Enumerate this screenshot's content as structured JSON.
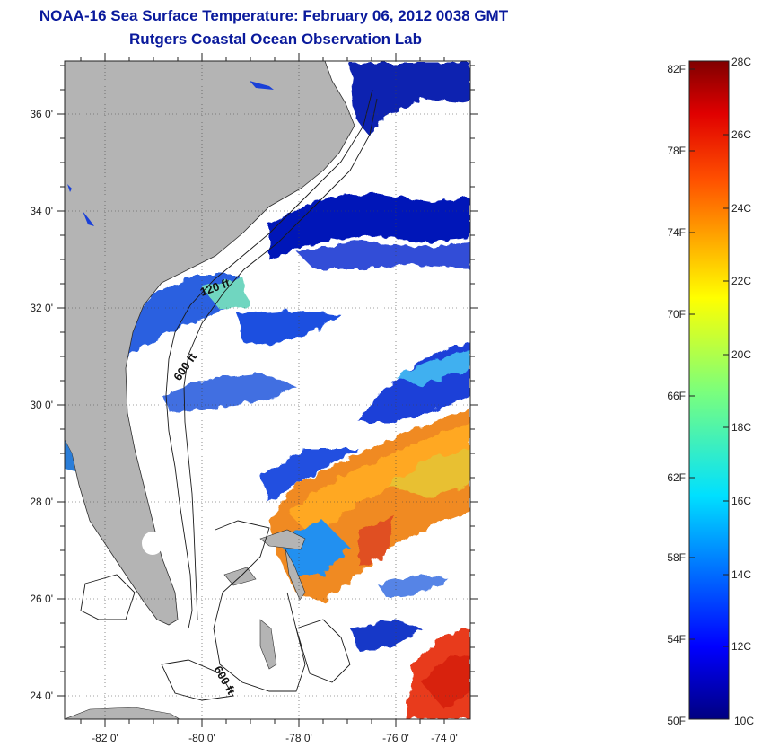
{
  "title": {
    "line1": "NOAA-16 Sea Surface Temperature:  February 06, 2012 0038 GMT",
    "line2": "Rutgers Coastal Ocean Observation Lab"
  },
  "map": {
    "lat_labels": [
      "36 0'",
      "34 0'",
      "32 0'",
      "30 0'",
      "28 0'",
      "26 0'",
      "24 0'"
    ],
    "lon_labels": [
      "-82 0'",
      "-80 0'",
      "-78 0'",
      "-76 0'",
      "-74 0'"
    ],
    "contour_labels": [
      "120 ft",
      "600 ft",
      "600 ft"
    ],
    "land_color": "#b4b4b4",
    "background_color": "#ffffff"
  },
  "colorbar": {
    "fahrenheit_labels": [
      "82F",
      "78F",
      "74F",
      "70F",
      "66F",
      "62F",
      "58F",
      "54F",
      "50F"
    ],
    "celsius_labels": [
      "28C",
      "26C",
      "24C",
      "22C",
      "20C",
      "18C",
      "16C",
      "14C",
      "12C",
      "10C"
    ],
    "colormap": "jet"
  }
}
